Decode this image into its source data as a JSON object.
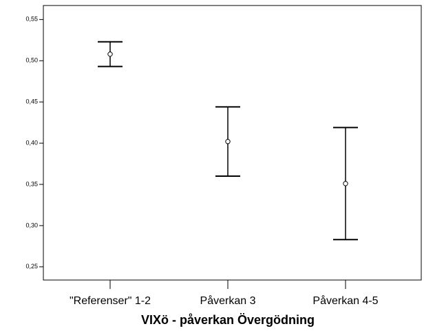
{
  "chart_data": {
    "type": "errorbar",
    "x_label": "VIXö - påverkan Övergödning",
    "categories": [
      "\"Referenser\" 1-2",
      "Påverkan 3",
      "Påverkan 4-5"
    ],
    "values": [
      0.508,
      0.402,
      0.351
    ],
    "errors": [
      0.015,
      0.042,
      0.068
    ],
    "color": "#000000",
    "ylim": [
      0.234,
      0.567
    ],
    "yticks": [
      {
        "value": 0.25,
        "label": "0,25"
      },
      {
        "value": 0.3,
        "label": "0,30"
      },
      {
        "value": 0.35,
        "label": "0,35"
      },
      {
        "value": 0.4,
        "label": "0,40"
      },
      {
        "value": 0.45,
        "label": "0,45"
      },
      {
        "value": 0.5,
        "label": "0,50"
      },
      {
        "value": 0.55,
        "label": "0,55"
      }
    ],
    "grid": false
  }
}
